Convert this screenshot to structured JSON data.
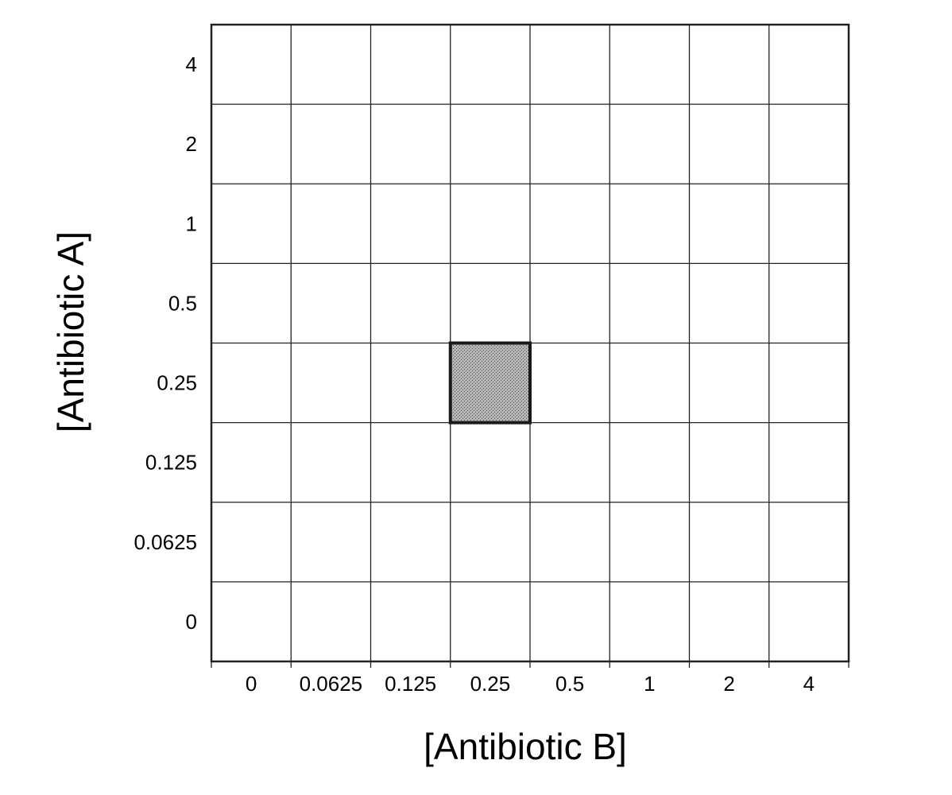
{
  "chart_data": {
    "type": "heatmap",
    "title": "",
    "xlabel": "[Antibiotic B]",
    "ylabel": "[Antibiotic A]",
    "x_categories": [
      "0",
      "0.0625",
      "0.125",
      "0.25",
      "0.5",
      "1",
      "2",
      "4"
    ],
    "y_categories": [
      "0",
      "0.0625",
      "0.125",
      "0.25",
      "0.5",
      "1",
      "2",
      "4"
    ],
    "highlighted_cells": [
      {
        "x": "0.25",
        "y": "0.25"
      }
    ],
    "grid": true,
    "colors": {
      "highlight_fill": "#9e9e9e",
      "highlight_border": "#1a1a1a",
      "grid_line": "#222222",
      "background": "#ffffff"
    }
  }
}
